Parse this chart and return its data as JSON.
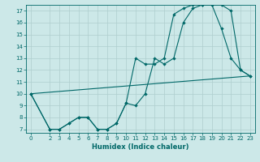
{
  "title": "",
  "xlabel": "Humidex (Indice chaleur)",
  "background_color": "#cce8e8",
  "grid_color": "#aecece",
  "line_color": "#006868",
  "xlim": [
    -0.5,
    23.5
  ],
  "ylim": [
    6.7,
    17.5
  ],
  "yticks": [
    7,
    8,
    9,
    10,
    11,
    12,
    13,
    14,
    15,
    16,
    17
  ],
  "xticks": [
    0,
    2,
    3,
    4,
    5,
    6,
    7,
    8,
    9,
    10,
    11,
    12,
    13,
    14,
    15,
    16,
    17,
    18,
    19,
    20,
    21,
    22,
    23
  ],
  "line1_x": [
    0,
    2,
    3,
    4,
    5,
    6,
    7,
    8,
    9,
    10,
    11,
    12,
    13,
    14,
    15,
    16,
    17,
    18,
    19,
    20,
    21,
    22,
    23
  ],
  "line1_y": [
    10,
    7,
    7,
    7.5,
    8,
    8,
    7,
    7,
    7.5,
    9.2,
    13,
    12.5,
    12.5,
    13,
    16.7,
    17.2,
    17.5,
    17.5,
    17.5,
    15.5,
    13,
    12,
    11.5
  ],
  "line2_x": [
    0,
    2,
    3,
    4,
    5,
    6,
    7,
    8,
    9,
    10,
    11,
    12,
    13,
    14,
    15,
    16,
    17,
    18,
    19,
    20,
    21,
    22,
    23
  ],
  "line2_y": [
    10,
    7,
    7,
    7.5,
    8,
    8,
    7,
    7,
    7.5,
    9.2,
    9,
    10,
    13,
    12.5,
    13,
    16,
    17.2,
    17.5,
    17.5,
    17.5,
    17,
    12,
    11.5
  ],
  "line3_x": [
    0,
    23
  ],
  "line3_y": [
    10,
    11.5
  ]
}
